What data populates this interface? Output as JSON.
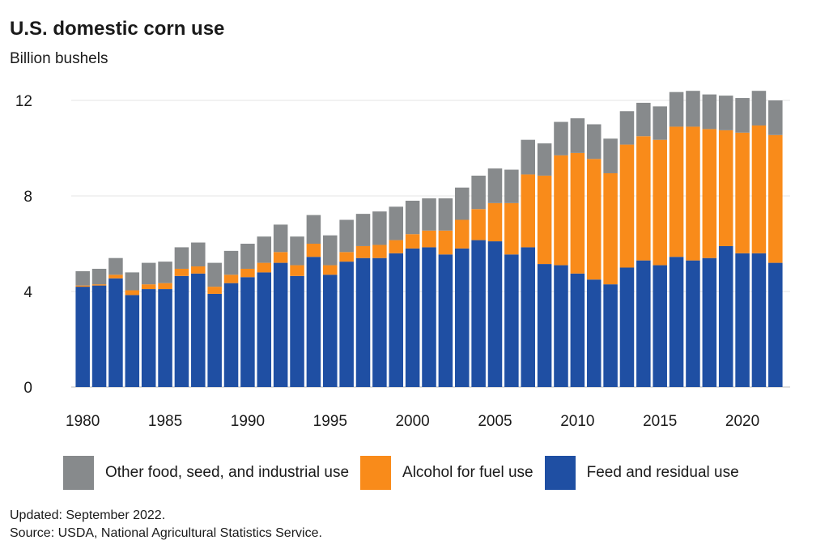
{
  "title": "U.S. domestic corn use",
  "subtitle": "Billion bushels",
  "legend": [
    {
      "label": "Other food, seed, and industrial use",
      "color": "#878a8c",
      "icon": "legend-swatch-other"
    },
    {
      "label": "Alcohol for fuel use",
      "color": "#f98b1a",
      "icon": "legend-swatch-alcohol"
    },
    {
      "label": "Feed and residual use",
      "color": "#1f4fa3",
      "icon": "legend-swatch-feed"
    }
  ],
  "footer": {
    "updated": "Updated: September 2022.",
    "source": "Source: USDA, National Agricultural Statistics Service."
  },
  "chart_data": {
    "type": "bar",
    "stacked": true,
    "ylim": [
      0,
      12.4
    ],
    "yticks": [
      0,
      4,
      8,
      12
    ],
    "xticks": [
      "1980",
      "1985",
      "1990",
      "1995",
      "2000",
      "2005",
      "2010",
      "2015",
      "2020"
    ],
    "grid": true,
    "legend_position": "bottom",
    "categories": [
      "1980",
      "1981",
      "1982",
      "1983",
      "1984",
      "1985",
      "1986",
      "1987",
      "1988",
      "1989",
      "1990",
      "1991",
      "1992",
      "1993",
      "1994",
      "1995",
      "1996",
      "1997",
      "1998",
      "1999",
      "2000",
      "2001",
      "2002",
      "2003",
      "2004",
      "2005",
      "2006",
      "2007",
      "2008",
      "2009",
      "2010",
      "2011",
      "2012",
      "2013",
      "2014",
      "2015",
      "2016",
      "2017",
      "2018",
      "2019",
      "2020",
      "2021",
      "2022"
    ],
    "series": [
      {
        "name": "Feed and residual use",
        "color": "#1f4fa3",
        "values": [
          4.2,
          4.25,
          4.55,
          3.85,
          4.1,
          4.1,
          4.65,
          4.75,
          3.9,
          4.35,
          4.6,
          4.8,
          5.2,
          4.65,
          5.45,
          4.7,
          5.25,
          5.4,
          5.4,
          5.6,
          5.8,
          5.85,
          5.55,
          5.8,
          6.15,
          6.1,
          5.55,
          5.85,
          5.15,
          5.1,
          4.75,
          4.5,
          4.3,
          5.0,
          5.3,
          5.1,
          5.45,
          5.3,
          5.4,
          5.9,
          5.6,
          5.6,
          5.2
        ]
      },
      {
        "name": "Alcohol for fuel use",
        "color": "#f98b1a",
        "values": [
          0.05,
          0.05,
          0.15,
          0.2,
          0.2,
          0.25,
          0.3,
          0.3,
          0.3,
          0.35,
          0.35,
          0.4,
          0.45,
          0.45,
          0.55,
          0.4,
          0.4,
          0.5,
          0.55,
          0.55,
          0.6,
          0.7,
          1.0,
          1.2,
          1.3,
          1.6,
          2.15,
          3.05,
          3.7,
          4.6,
          5.05,
          5.05,
          4.65,
          5.15,
          5.2,
          5.25,
          5.45,
          5.6,
          5.4,
          4.85,
          5.05,
          5.35,
          5.35
        ]
      },
      {
        "name": "Other food, seed, and industrial use",
        "color": "#878a8c",
        "values": [
          0.6,
          0.65,
          0.7,
          0.75,
          0.9,
          0.9,
          0.9,
          1.0,
          1.0,
          1.0,
          1.05,
          1.1,
          1.15,
          1.2,
          1.2,
          1.25,
          1.35,
          1.35,
          1.4,
          1.4,
          1.4,
          1.35,
          1.35,
          1.35,
          1.4,
          1.45,
          1.4,
          1.45,
          1.35,
          1.4,
          1.45,
          1.45,
          1.45,
          1.4,
          1.4,
          1.4,
          1.45,
          1.5,
          1.45,
          1.45,
          1.45,
          1.45,
          1.45
        ]
      }
    ]
  }
}
